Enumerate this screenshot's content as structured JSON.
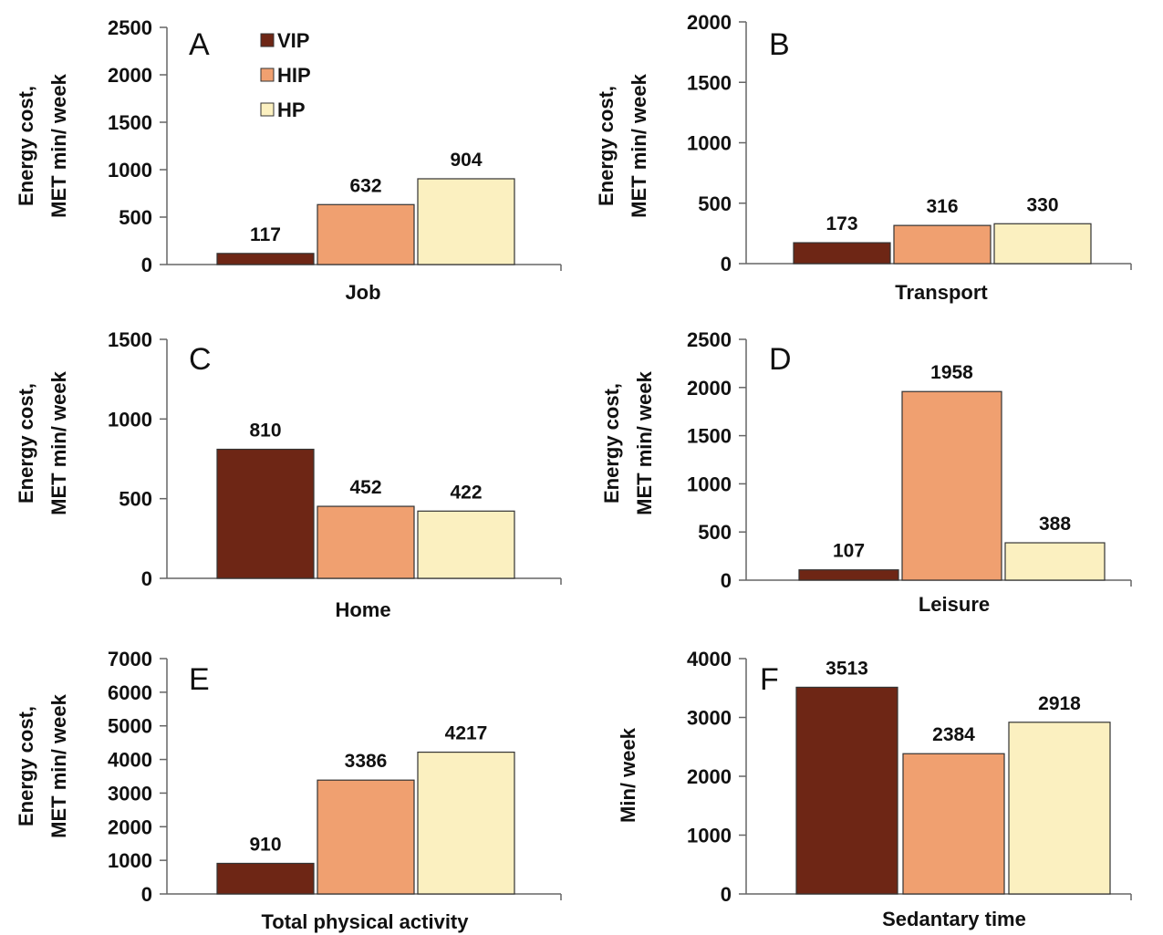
{
  "colors": {
    "VIP": "#6e2615",
    "HIP": "#f0a070",
    "HP": "#fbf0c0"
  },
  "legend": [
    {
      "label": "VIP",
      "color": "#6e2615"
    },
    {
      "label": "HIP",
      "color": "#f0a070"
    },
    {
      "label": "HP",
      "color": "#fbf0c0"
    }
  ],
  "chart_data": [
    {
      "type": "bar",
      "letter": "A",
      "xlabel": "Job",
      "ylabel": [
        "Energy cost,",
        "MET min/ week"
      ],
      "ylim": [
        0,
        2500
      ],
      "yticks": [
        0,
        500,
        1000,
        1500,
        2000,
        2500
      ],
      "series": [
        {
          "name": "VIP",
          "values": [
            117
          ]
        },
        {
          "name": "HIP",
          "values": [
            632
          ]
        },
        {
          "name": "HP",
          "values": [
            904
          ]
        }
      ]
    },
    {
      "type": "bar",
      "letter": "B",
      "xlabel": "Transport",
      "ylabel": [
        "Energy cost,",
        "MET min/ week"
      ],
      "ylim": [
        0,
        2000
      ],
      "yticks": [
        0,
        500,
        1000,
        1500,
        2000
      ],
      "series": [
        {
          "name": "VIP",
          "values": [
            173
          ]
        },
        {
          "name": "HIP",
          "values": [
            316
          ]
        },
        {
          "name": "HP",
          "values": [
            330
          ]
        }
      ]
    },
    {
      "type": "bar",
      "letter": "C",
      "xlabel": "Home",
      "ylabel": [
        "Energy cost,",
        "MET min/ week"
      ],
      "ylim": [
        0,
        1500
      ],
      "yticks": [
        0,
        500,
        1000,
        1500
      ],
      "series": [
        {
          "name": "VIP",
          "values": [
            810
          ]
        },
        {
          "name": "HIP",
          "values": [
            452
          ]
        },
        {
          "name": "HP",
          "values": [
            422
          ]
        }
      ]
    },
    {
      "type": "bar",
      "letter": "D",
      "xlabel": "Leisure",
      "ylabel": [
        "Energy cost,",
        "MET min/ week"
      ],
      "ylim": [
        0,
        2500
      ],
      "yticks": [
        0,
        500,
        1000,
        1500,
        2000,
        2500
      ],
      "series": [
        {
          "name": "VIP",
          "values": [
            107
          ]
        },
        {
          "name": "HIP",
          "values": [
            1958
          ]
        },
        {
          "name": "HP",
          "values": [
            388
          ]
        }
      ]
    },
    {
      "type": "bar",
      "letter": "E",
      "xlabel": "Total physical activity",
      "ylabel": [
        "Energy cost,",
        "MET min/ week"
      ],
      "ylim": [
        0,
        7000
      ],
      "yticks": [
        0,
        1000,
        2000,
        3000,
        4000,
        5000,
        6000,
        7000
      ],
      "series": [
        {
          "name": "VIP",
          "values": [
            910
          ]
        },
        {
          "name": "HIP",
          "values": [
            3386
          ]
        },
        {
          "name": "HP",
          "values": [
            4217
          ]
        }
      ]
    },
    {
      "type": "bar",
      "letter": "F",
      "xlabel": "Sedantary time",
      "ylabel": [
        "Min/ week"
      ],
      "ylim": [
        0,
        4000
      ],
      "yticks": [
        0,
        1000,
        2000,
        3000,
        4000
      ],
      "series": [
        {
          "name": "VIP",
          "values": [
            3513
          ]
        },
        {
          "name": "HIP",
          "values": [
            2384
          ]
        },
        {
          "name": "HP",
          "values": [
            2918
          ]
        }
      ]
    }
  ]
}
